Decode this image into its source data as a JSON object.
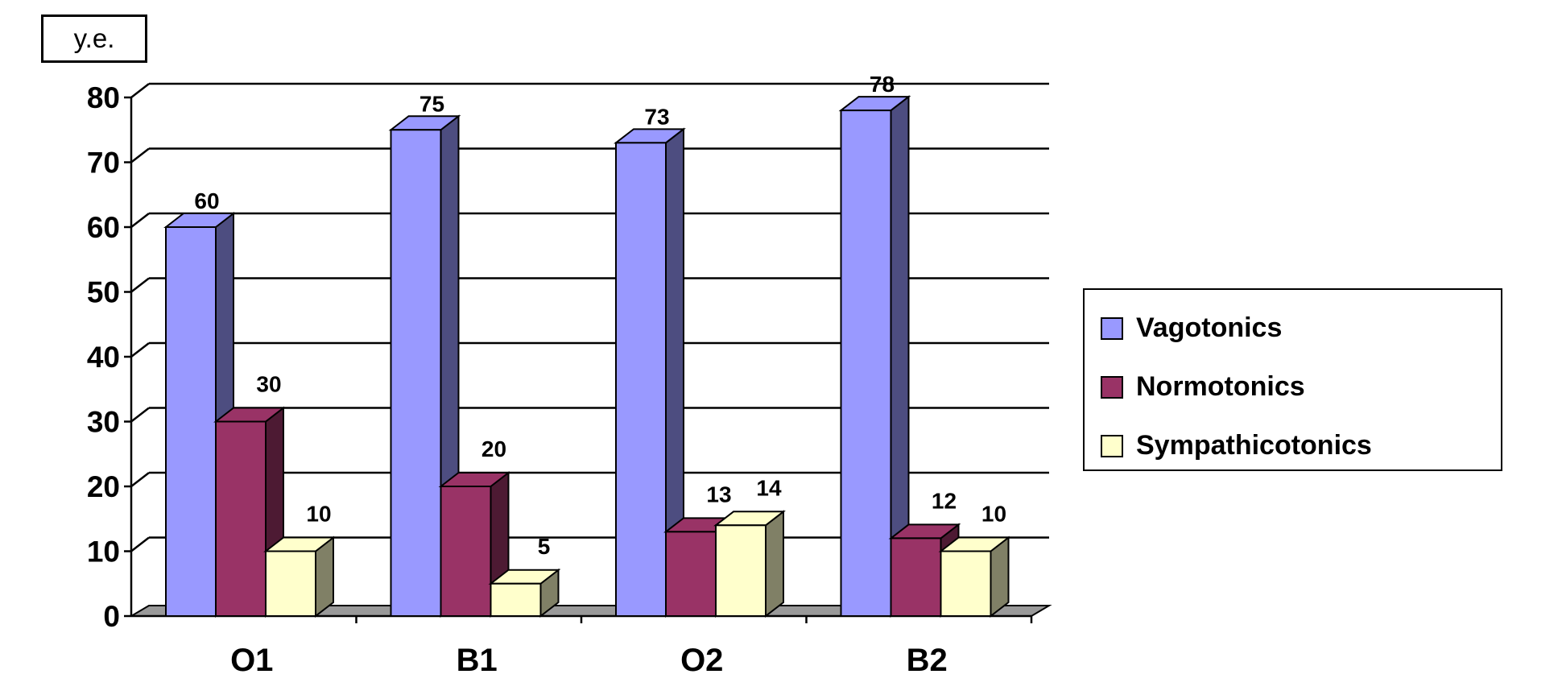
{
  "chart_data": {
    "type": "bar",
    "title": "",
    "ylabel": "y.e.",
    "xlabel": "",
    "categories": [
      "O1",
      "B1",
      "O2",
      "B2"
    ],
    "ylim": [
      0,
      80
    ],
    "yticks": [
      0,
      10,
      20,
      30,
      40,
      50,
      60,
      70,
      80
    ],
    "grid": true,
    "legend_position": "right",
    "style": "3d-clustered",
    "series": [
      {
        "name": "Vagotonics",
        "values": [
          60,
          75,
          73,
          78
        ],
        "color": "#9999FF",
        "side_color": "#4D4D80"
      },
      {
        "name": "Normotonics",
        "values": [
          30,
          20,
          13,
          12
        ],
        "color": "#993366",
        "side_color": "#4D1A33"
      },
      {
        "name": "Sympathicotonics",
        "values": [
          10,
          5,
          14,
          10
        ],
        "color": "#FFFFCC",
        "side_color": "#808066"
      }
    ],
    "floor_color": "#999999"
  }
}
